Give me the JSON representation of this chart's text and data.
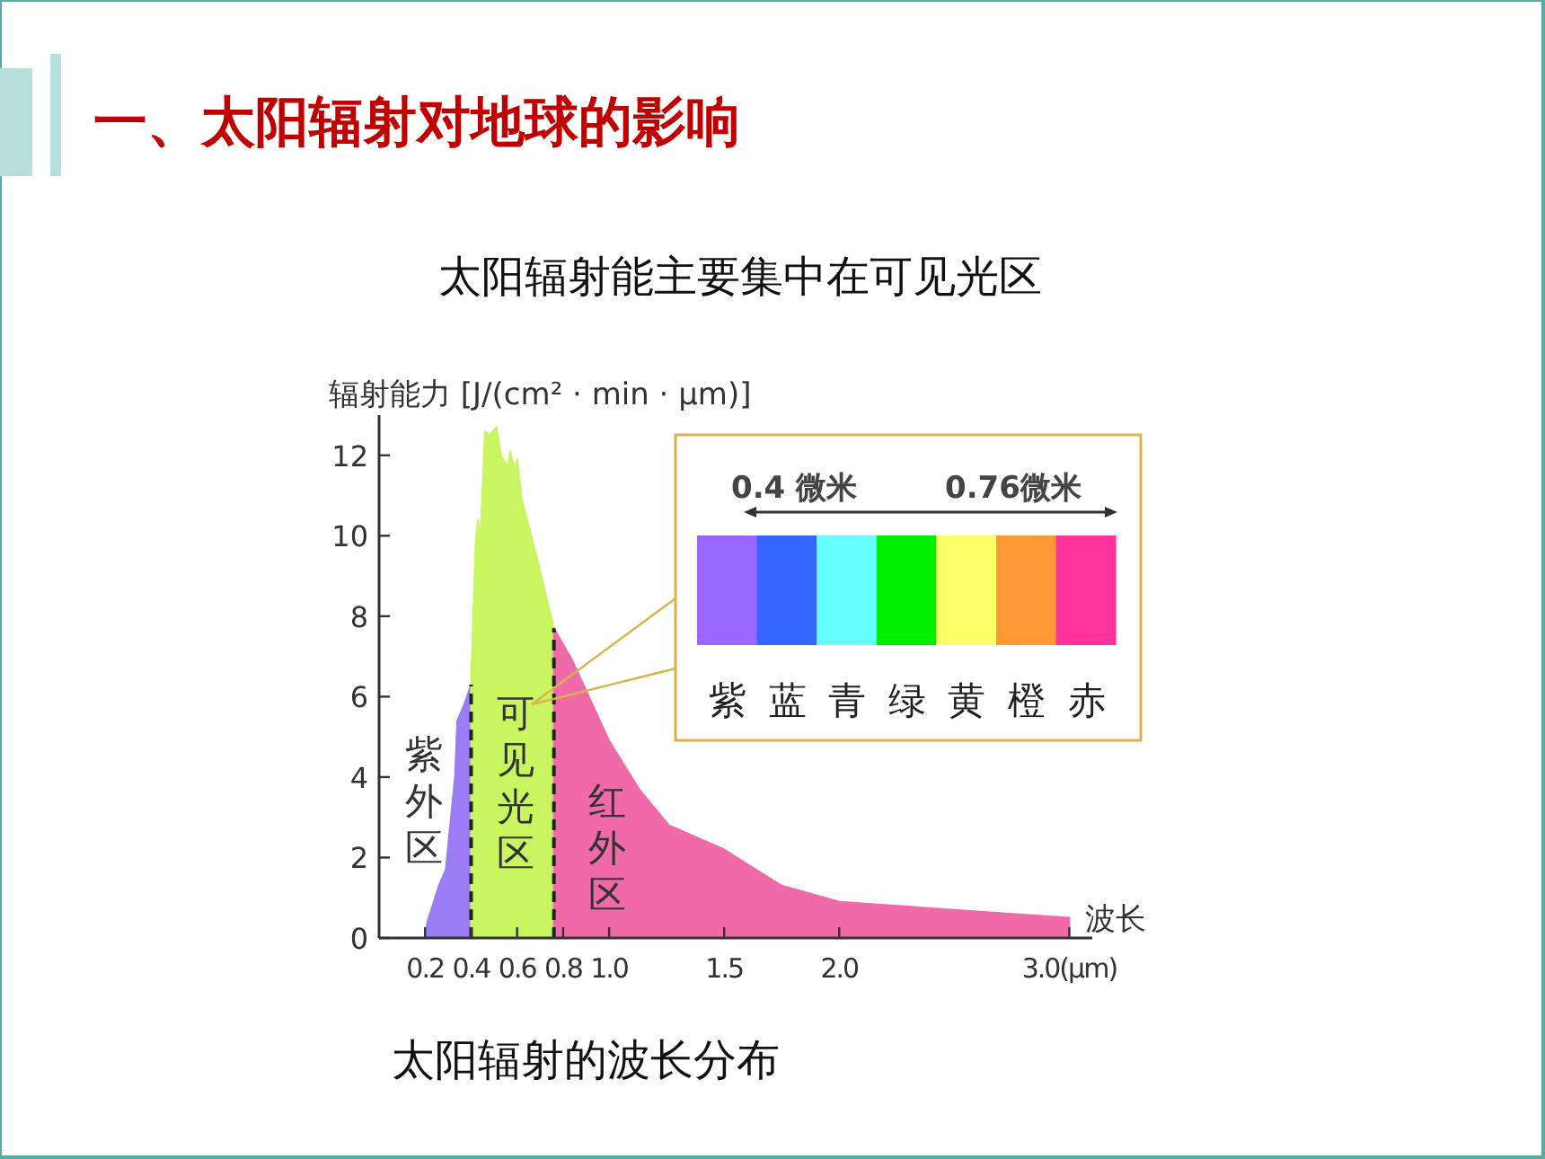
{
  "chart_data": {
    "type": "area",
    "title": "一、太阳辐射对地球的影响",
    "subtitle": "太阳辐射能主要集中在可见光区",
    "ylabel": "辐射能力 [J/(cm² · min · μm)]",
    "xlabel": "波长",
    "xlim": [
      0,
      3.1
    ],
    "ylim": [
      0,
      13
    ],
    "xticks": [
      0.2,
      0.4,
      0.6,
      0.8,
      {
        "value": 1.0,
        "label": "1.0"
      },
      1.5,
      {
        "value": 2.0,
        "label": "2.0"
      },
      {
        "value": 3.0,
        "label": "3.0(μm)"
      }
    ],
    "yticks": [
      0,
      2,
      4,
      6,
      8,
      10,
      12
    ],
    "series": [
      {
        "color": "#9b7cf4",
        "x": [
          0.2,
          0.21,
          0.26,
          0.29,
          0.33,
          0.34,
          0.37,
          0.4
        ],
        "values": [
          0,
          0.4,
          1.3,
          1.7,
          4.0,
          5.4,
          5.8,
          6.3
        ]
      },
      {
        "color": "#c8f560",
        "x": [
          0.4,
          0.42,
          0.43,
          0.44,
          0.46,
          0.48,
          0.51,
          0.53,
          0.56,
          0.57,
          0.59,
          0.6,
          0.62,
          0.68,
          0.73,
          0.76
        ],
        "values": [
          6.3,
          9.9,
          10.4,
          9.8,
          12.6,
          12.5,
          12.7,
          12.0,
          11.7,
          12.1,
          11.6,
          11.9,
          10.9,
          9.6,
          8.4,
          7.7
        ]
      },
      {
        "color": "#f06aa9",
        "x": [
          0.76,
          0.84,
          0.92,
          1.0,
          1.13,
          1.26,
          1.5,
          1.75,
          2.0,
          2.5,
          3.0
        ],
        "values": [
          7.7,
          6.9,
          5.9,
          4.9,
          3.7,
          2.8,
          2.2,
          1.3,
          0.9,
          0.7,
          0.5
        ]
      }
    ],
    "ref_lines": [
      {
        "axis": "x",
        "value": 0.4,
        "color": "#222222",
        "line_style": "dashed"
      },
      {
        "axis": "x",
        "value": 0.76,
        "color": "#222222",
        "line_style": "dashed"
      }
    ],
    "annotations": [
      "紫外区",
      "可见光区",
      "红外区",
      "0.4 微米",
      "0.76微米",
      "紫",
      "蓝",
      "青",
      "绿",
      "黄",
      "橙",
      "赤",
      "太阳辐射的波长分布"
    ]
  }
}
